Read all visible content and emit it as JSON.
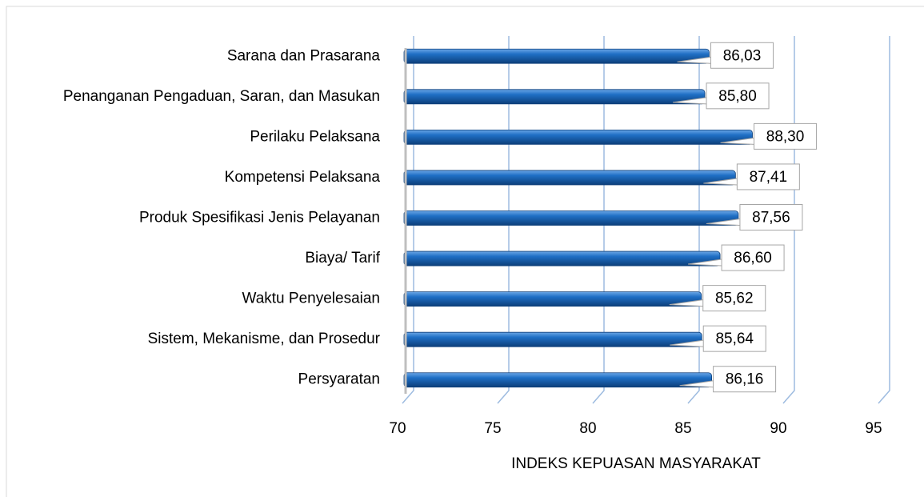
{
  "chart_data": {
    "type": "hbar",
    "xlabel": "INDEKS KEPUASAN MASYARAKAT",
    "categories": [
      "Sarana dan Prasarana",
      "Penanganan Pengaduan, Saran, dan Masukan",
      "Perilaku Pelaksana",
      "Kompetensi Pelaksana",
      "Produk Spesifikasi Jenis Pelayanan",
      "Biaya/ Tarif",
      "Waktu Penyelesaian",
      "Sistem, Mekanisme, dan Prosedur",
      "Persyaratan"
    ],
    "values": [
      86.03,
      85.8,
      88.3,
      87.41,
      87.56,
      86.6,
      85.62,
      85.64,
      86.16
    ],
    "value_labels": [
      "86,03",
      "85,80",
      "88,30",
      "87,41",
      "87,56",
      "86,60",
      "85,62",
      "85,64",
      "86,16"
    ],
    "color": "#1f6fc5",
    "xlim": [
      70,
      95
    ],
    "xticks": [
      70,
      75,
      80,
      85,
      90,
      95
    ],
    "grid": true
  }
}
